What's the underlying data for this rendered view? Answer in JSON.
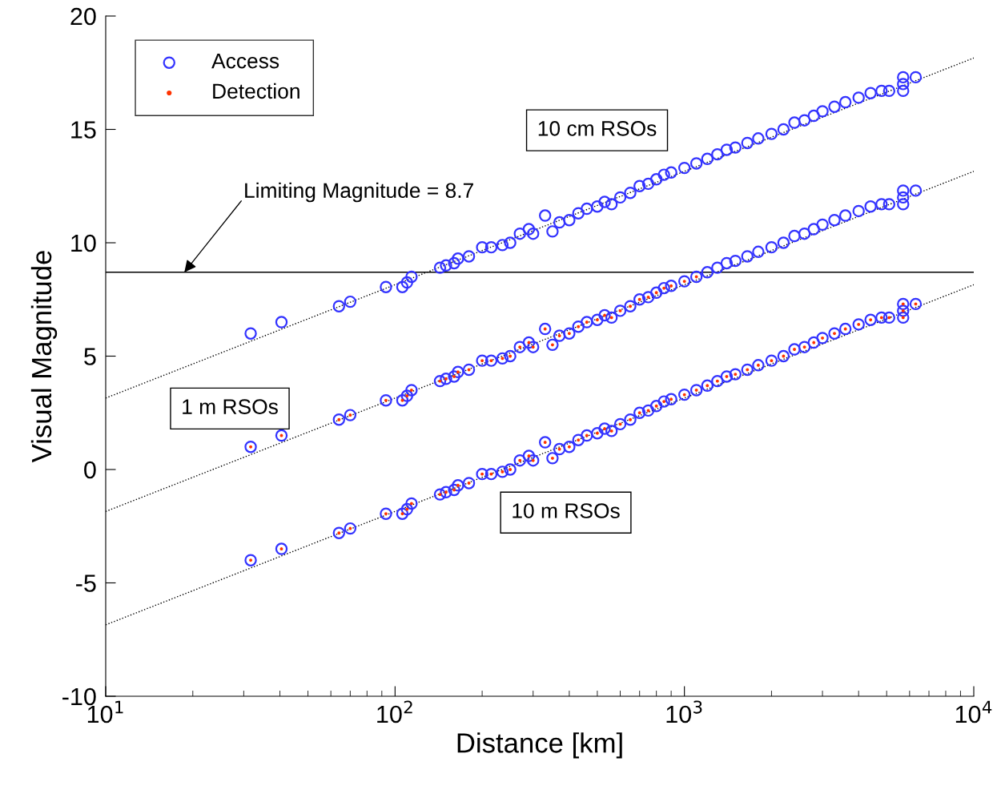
{
  "chart_data": {
    "type": "scatter",
    "xlabel": "Distance [km]",
    "ylabel": "Visual Magnitude",
    "log": "x",
    "xlim": [
      10,
      10000
    ],
    "xticks": [
      {
        "value": 10,
        "label": "10$^{1}$"
      },
      {
        "value": 100,
        "label": "10$^{2}$"
      },
      {
        "value": 1000,
        "label": "10$^{3}$"
      },
      {
        "value": 10000,
        "label": "10$^{4}$"
      }
    ],
    "ylim": [
      -10,
      20
    ],
    "yticks": [
      -10,
      -5,
      0,
      5,
      10,
      15,
      20
    ],
    "grid": false,
    "legend": "top left",
    "series": [
      {
        "name": "Access",
        "marker": "circle",
        "color": "#3333ff",
        "x": [
          31.7,
          40.5,
          64,
          70,
          93,
          106,
          110,
          114,
          143,
          150,
          160,
          165,
          180,
          200,
          215,
          235,
          250,
          270,
          290,
          300,
          330,
          350,
          370,
          400,
          430,
          460,
          500,
          530,
          560,
          600,
          650,
          700,
          750,
          800,
          850,
          900,
          1000,
          1100,
          1200,
          1300,
          1400,
          1500,
          1650,
          1800,
          2000,
          2200,
          2400,
          2600,
          2800,
          3000,
          3300,
          3600,
          4000,
          4400,
          4800,
          5100,
          5700,
          5700,
          5700,
          6300,
          31.7,
          40.5,
          64,
          70,
          93,
          106,
          110,
          114,
          143,
          150,
          160,
          165,
          180,
          200,
          215,
          235,
          250,
          270,
          290,
          300,
          330,
          350,
          370,
          400,
          430,
          460,
          500,
          530,
          560,
          600,
          650,
          700,
          750,
          800,
          850,
          900,
          1000,
          1100,
          1200,
          1300,
          1400,
          1500,
          1650,
          1800,
          2000,
          2200,
          2400,
          2600,
          2800,
          3000,
          3300,
          3600,
          4000,
          4400,
          4800,
          5100,
          5700,
          5700,
          5700,
          6300,
          31.7,
          40.5,
          64,
          70,
          93,
          106,
          110,
          114,
          143,
          150,
          160,
          165,
          180,
          200,
          215,
          235,
          250,
          270,
          290,
          300,
          330,
          350,
          370,
          400,
          430,
          460,
          500,
          530,
          560,
          600,
          650,
          700,
          750,
          800,
          850,
          900,
          1000,
          1100,
          1200,
          1300,
          1400,
          1500,
          1650,
          1800,
          2000,
          2200,
          2400,
          2600,
          2800,
          3000,
          3300,
          3600,
          4000,
          4400,
          4800,
          5100,
          5700,
          5700,
          5700,
          6300
        ],
        "values": [
          -4.0,
          -3.5,
          -2.8,
          -2.6,
          -1.95,
          -1.95,
          -1.75,
          -1.5,
          -1.1,
          -1.0,
          -0.9,
          -0.7,
          -0.6,
          -0.2,
          -0.2,
          -0.1,
          0,
          0.4,
          0.6,
          0.4,
          1.2,
          0.5,
          0.9,
          1.0,
          1.3,
          1.5,
          1.6,
          1.8,
          1.7,
          2.0,
          2.2,
          2.5,
          2.6,
          2.8,
          3.0,
          3.1,
          3.3,
          3.5,
          3.7,
          3.9,
          4.1,
          4.2,
          4.4,
          4.6,
          4.8,
          5.0,
          5.3,
          5.4,
          5.6,
          5.8,
          6.0,
          6.2,
          6.4,
          6.6,
          6.7,
          6.7,
          7.3,
          6.7,
          7.0,
          7.3,
          1.0,
          1.5,
          2.2,
          2.4,
          3.05,
          3.05,
          3.25,
          3.5,
          3.9,
          4.0,
          4.1,
          4.3,
          4.4,
          4.8,
          4.8,
          4.9,
          5.0,
          5.4,
          5.6,
          5.4,
          6.2,
          5.5,
          5.9,
          6.0,
          6.3,
          6.5,
          6.6,
          6.8,
          6.7,
          7.0,
          7.2,
          7.5,
          7.6,
          7.8,
          8.0,
          8.1,
          8.3,
          8.5,
          8.7,
          8.9,
          9.1,
          9.2,
          9.4,
          9.6,
          9.8,
          10.0,
          10.3,
          10.4,
          10.6,
          10.8,
          11.0,
          11.2,
          11.4,
          11.6,
          11.7,
          11.7,
          12.3,
          11.7,
          12.0,
          12.3,
          6.0,
          6.5,
          7.2,
          7.4,
          8.05,
          8.05,
          8.25,
          8.5,
          8.9,
          9.0,
          9.1,
          9.3,
          9.4,
          9.8,
          9.8,
          9.9,
          10.0,
          10.4,
          10.6,
          10.4,
          11.2,
          10.5,
          10.9,
          11.0,
          11.3,
          11.5,
          11.6,
          11.8,
          11.7,
          12.0,
          12.2,
          12.5,
          12.6,
          12.8,
          13.0,
          13.1,
          13.3,
          13.5,
          13.7,
          13.9,
          14.1,
          14.2,
          14.4,
          14.6,
          14.8,
          15.0,
          15.3,
          15.4,
          15.6,
          15.8,
          16.0,
          16.2,
          16.4,
          16.6,
          16.7,
          16.7,
          17.3,
          16.7,
          17.0,
          17.3
        ]
      },
      {
        "name": "Detection",
        "marker": "circle",
        "color": "#ff3300",
        "x": [
          31.7,
          40.5,
          64,
          70,
          93,
          106,
          110,
          114,
          143,
          150,
          160,
          165,
          180,
          200,
          215,
          235,
          250,
          270,
          290,
          300,
          330,
          350,
          370,
          400,
          430,
          460,
          500,
          530,
          560,
          600,
          650,
          700,
          750,
          800,
          850,
          900,
          1000,
          1100,
          1200,
          1300,
          1400,
          1500,
          1650,
          1800,
          2000,
          2200,
          2400,
          2600,
          2800,
          3000,
          3300,
          3600,
          4000,
          4400,
          4800,
          5100,
          5700,
          5700,
          5700,
          6300,
          31.7,
          40.5,
          64,
          70,
          93,
          106,
          110,
          114,
          143,
          150,
          160,
          165,
          180,
          200,
          215,
          235,
          250,
          270,
          290,
          300,
          330,
          350,
          370,
          400,
          430,
          460,
          500,
          530,
          560,
          600,
          650,
          700,
          750,
          800,
          850,
          900,
          1000,
          1100
        ],
        "values": [
          -4.0,
          -3.5,
          -2.8,
          -2.6,
          -1.95,
          -1.95,
          -1.75,
          -1.5,
          -1.1,
          -1.0,
          -0.9,
          -0.7,
          -0.6,
          -0.2,
          -0.2,
          -0.1,
          0,
          0.4,
          0.6,
          0.4,
          1.2,
          0.5,
          0.9,
          1.0,
          1.3,
          1.5,
          1.6,
          1.8,
          1.7,
          2.0,
          2.2,
          2.5,
          2.6,
          2.8,
          3.0,
          3.1,
          3.3,
          3.5,
          3.7,
          3.9,
          4.1,
          4.2,
          4.4,
          4.6,
          4.8,
          5.0,
          5.3,
          5.4,
          5.6,
          5.8,
          6.0,
          6.2,
          6.4,
          6.6,
          6.7,
          6.7,
          7.3,
          6.7,
          7.0,
          7.3,
          1.0,
          1.5,
          2.2,
          2.4,
          3.05,
          3.05,
          3.25,
          3.5,
          3.9,
          4.0,
          4.1,
          4.3,
          4.4,
          4.8,
          4.8,
          4.9,
          5.0,
          5.4,
          5.6,
          5.4,
          6.2,
          5.5,
          5.9,
          6.0,
          6.3,
          6.5,
          6.6,
          6.8,
          6.7,
          7.0,
          7.2,
          7.5,
          7.6,
          7.8,
          8.0,
          8.1,
          8.3,
          8.5
        ]
      },
      {
        "type": "line",
        "line_style": "dotted",
        "color": "#000000",
        "x": [
          10,
          10000
        ],
        "values": [
          -6.85,
          8.15
        ]
      },
      {
        "type": "line",
        "line_style": "dotted",
        "color": "#000000",
        "x": [
          10,
          10000
        ],
        "values": [
          -1.85,
          13.15
        ]
      },
      {
        "type": "line",
        "line_style": "dotted",
        "color": "#000000",
        "x": [
          10,
          10000
        ],
        "values": [
          3.15,
          18.15
        ]
      }
    ],
    "ref_lines": [
      {
        "axis": "y",
        "value": 8.7,
        "color": "#000000",
        "line_style": "solid"
      }
    ],
    "annotations": [
      {
        "text": "Limiting Magnitude = 8.7",
        "x": 18.7,
        "y": 8.7
      },
      "10 cm RSOs",
      "1 m RSOs",
      "10 m RSOs"
    ]
  }
}
